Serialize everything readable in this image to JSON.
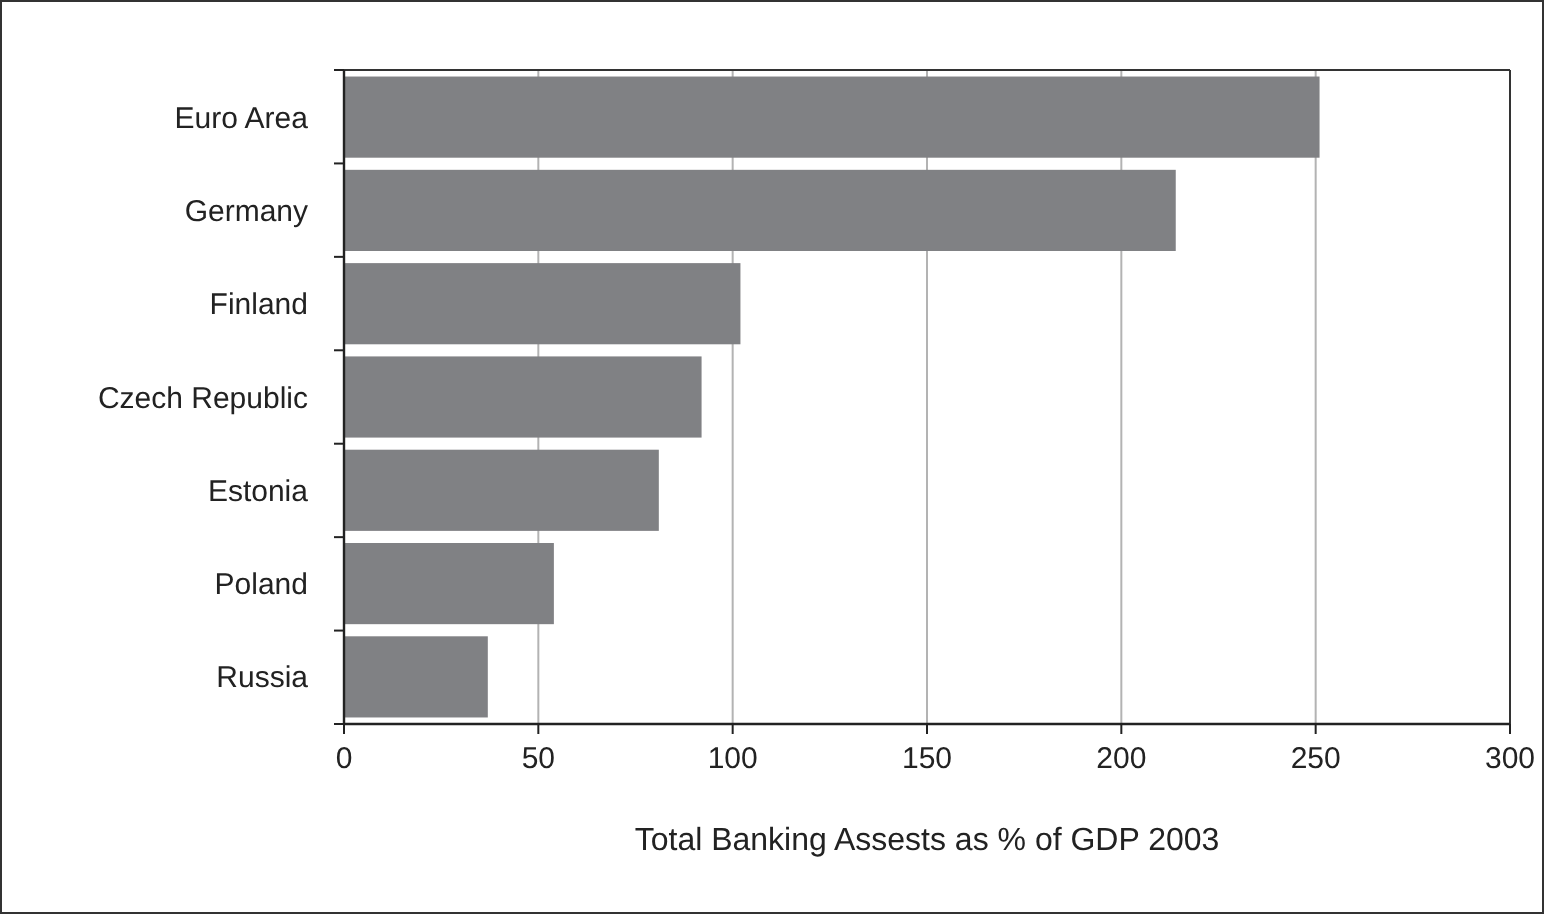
{
  "chart_data": {
    "type": "bar",
    "orientation": "horizontal",
    "xlabel": "Total Banking Assests as % of GDP 2003",
    "categories": [
      "Euro Area",
      "Germany",
      "Finland",
      "Czech Republic",
      "Estonia",
      "Poland",
      "Russia"
    ],
    "values": [
      251,
      214,
      102,
      92,
      81,
      54,
      37
    ],
    "color": "#808184",
    "xlim": [
      0,
      300
    ],
    "xticks": [
      0,
      50,
      100,
      150,
      200,
      250,
      300
    ],
    "grid": "x"
  }
}
